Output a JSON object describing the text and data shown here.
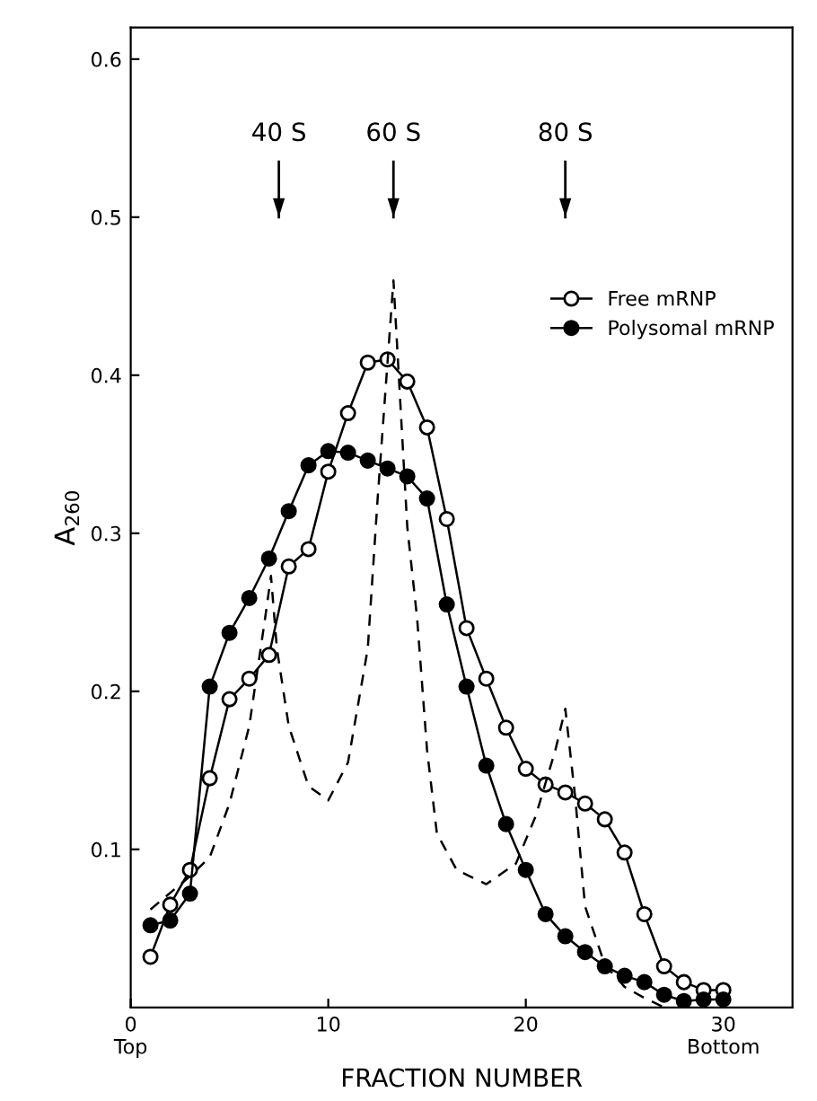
{
  "chart_data": {
    "type": "line",
    "xlabel": "FRACTION NUMBER",
    "ylabel": "A$_{260}$",
    "xlim": [
      0,
      33.5
    ],
    "ylim": [
      0,
      0.62
    ],
    "xticks": [
      {
        "value": 0,
        "label": "0\nTop"
      },
      10,
      20,
      {
        "value": 30,
        "label": "30\nBottom"
      }
    ],
    "yticks": [
      0.1,
      0.2,
      0.3,
      0.4,
      0.5,
      0.6
    ],
    "grid": false,
    "legend": "top right",
    "series": [
      {
        "name": "Free mRNP",
        "color": "#ffffff",
        "marker": "circle",
        "line_style": "solid",
        "x": [
          1,
          2,
          3,
          4,
          5,
          6,
          7,
          8,
          9,
          10,
          11,
          12,
          13,
          14,
          15,
          16,
          17,
          18,
          19,
          20,
          21,
          22,
          23,
          24,
          25,
          26,
          27,
          28,
          29,
          30
        ],
        "values": [
          0.032,
          0.065,
          0.087,
          0.145,
          0.195,
          0.208,
          0.223,
          0.279,
          0.29,
          0.339,
          0.376,
          0.408,
          0.41,
          0.396,
          0.367,
          0.309,
          0.24,
          0.208,
          0.177,
          0.151,
          0.141,
          0.136,
          0.129,
          0.119,
          0.098,
          0.059,
          0.026,
          0.016,
          0.011,
          0.011
        ]
      },
      {
        "name": "Polysomal mRNP",
        "color": "#000000",
        "marker": "circle",
        "line_style": "solid",
        "x": [
          1,
          2,
          3,
          4,
          5,
          6,
          7,
          8,
          9,
          10,
          11,
          12,
          13,
          14,
          15,
          16,
          17,
          18,
          19,
          20,
          21,
          22,
          23,
          24,
          25,
          26,
          27,
          28,
          29,
          30
        ],
        "values": [
          0.052,
          0.055,
          0.072,
          0.203,
          0.237,
          0.259,
          0.284,
          0.314,
          0.343,
          0.352,
          0.351,
          0.346,
          0.341,
          0.336,
          0.322,
          0.255,
          0.203,
          0.153,
          0.116,
          0.087,
          0.059,
          0.045,
          0.035,
          0.026,
          0.02,
          0.016,
          0.008,
          0.004,
          0.005,
          0.005
        ]
      },
      {
        "color": "#000000",
        "marker": "none",
        "line_style": "dashed",
        "x": [
          1,
          3,
          4,
          5,
          6,
          6.8,
          7.1,
          7.4,
          8,
          9,
          10,
          11,
          12,
          12.5,
          13.3,
          14,
          14.5,
          15,
          15.5,
          16.5,
          18,
          19.5,
          20.5,
          21.5,
          22,
          22.5,
          23,
          24,
          25,
          26,
          27
        ],
        "values": [
          0.062,
          0.083,
          0.095,
          0.129,
          0.178,
          0.246,
          0.273,
          0.227,
          0.178,
          0.14,
          0.131,
          0.155,
          0.227,
          0.322,
          0.46,
          0.304,
          0.246,
          0.163,
          0.11,
          0.087,
          0.078,
          0.091,
          0.121,
          0.163,
          0.189,
          0.133,
          0.064,
          0.027,
          0.013,
          0.006,
          0.0
        ]
      }
    ],
    "ref_lines": [
      {
        "axis": "x",
        "value": 7.5,
        "label": "40 S"
      },
      {
        "axis": "x",
        "value": 13.3,
        "label": "60 S"
      },
      {
        "axis": "x",
        "value": 22,
        "label": "80 S"
      }
    ]
  }
}
